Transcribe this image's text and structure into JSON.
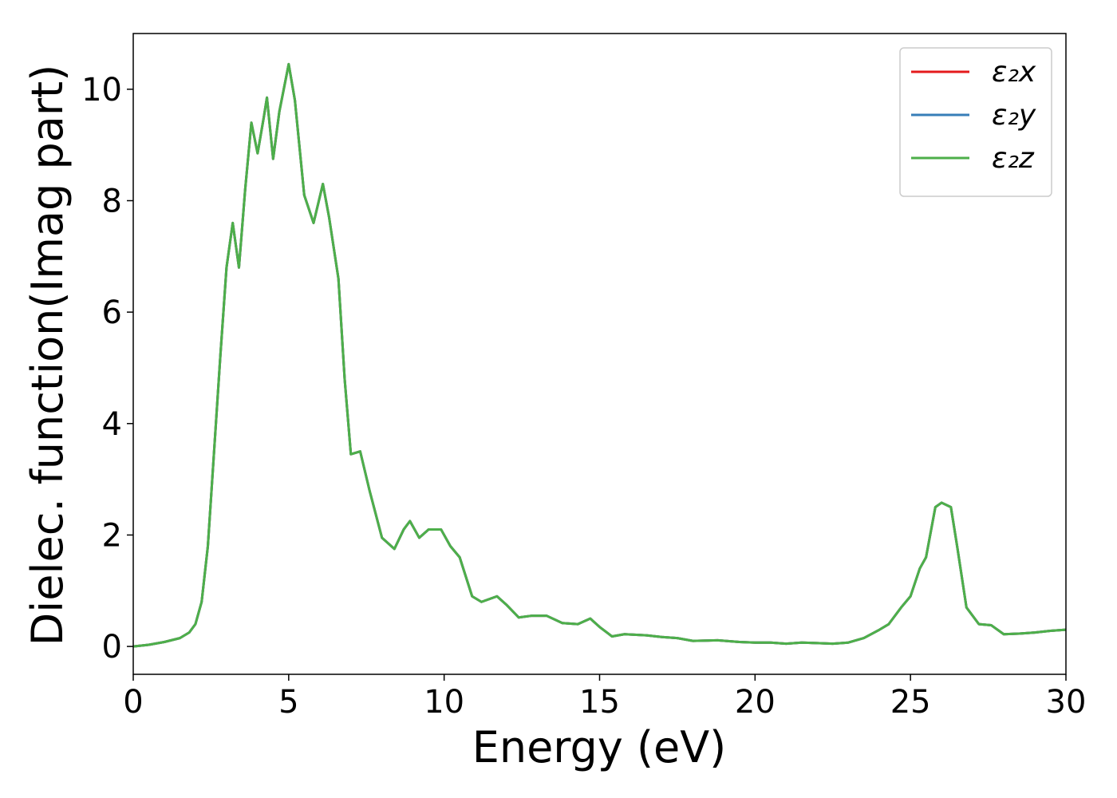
{
  "chart_data": {
    "type": "line",
    "xlabel": "Energy (eV)",
    "ylabel": "Dielec. function(Imag part)",
    "x": [
      0,
      0.5,
      1,
      1.5,
      1.8,
      2.0,
      2.2,
      2.4,
      2.6,
      2.8,
      3.0,
      3.2,
      3.4,
      3.6,
      3.8,
      4.0,
      4.2,
      4.3,
      4.5,
      4.7,
      5.0,
      5.2,
      5.5,
      5.8,
      6.1,
      6.3,
      6.6,
      6.8,
      7.0,
      7.3,
      7.6,
      8.0,
      8.4,
      8.7,
      8.9,
      9.2,
      9.5,
      9.9,
      10.2,
      10.5,
      10.9,
      11.2,
      11.7,
      12.0,
      12.4,
      12.8,
      13.3,
      13.8,
      14.3,
      14.7,
      15.0,
      15.4,
      15.8,
      16.5,
      17.0,
      17.5,
      18.0,
      18.8,
      19.5,
      20.0,
      20.5,
      21.0,
      21.5,
      22.0,
      22.5,
      23.0,
      23.5,
      24.0,
      24.3,
      24.7,
      25.0,
      25.3,
      25.5,
      25.8,
      26.0,
      26.3,
      26.5,
      26.8,
      27.2,
      27.6,
      28.0,
      28.5,
      29.0,
      29.5,
      30.0
    ],
    "series": [
      {
        "name": "ε₂x",
        "color": "#e41a1c",
        "values": [
          0,
          0.03,
          0.08,
          0.15,
          0.25,
          0.4,
          0.8,
          1.8,
          3.5,
          5.2,
          6.8,
          7.6,
          6.8,
          8.2,
          9.4,
          8.85,
          9.5,
          9.85,
          8.75,
          9.6,
          10.45,
          9.8,
          8.1,
          7.6,
          8.3,
          7.7,
          6.6,
          4.8,
          3.45,
          3.5,
          2.8,
          1.95,
          1.75,
          2.1,
          2.25,
          1.95,
          2.1,
          2.1,
          1.8,
          1.6,
          0.9,
          0.8,
          0.9,
          0.75,
          0.52,
          0.55,
          0.55,
          0.42,
          0.4,
          0.5,
          0.35,
          0.18,
          0.22,
          0.2,
          0.17,
          0.15,
          0.1,
          0.11,
          0.08,
          0.07,
          0.07,
          0.05,
          0.07,
          0.06,
          0.05,
          0.07,
          0.15,
          0.3,
          0.4,
          0.7,
          0.9,
          1.4,
          1.6,
          2.5,
          2.58,
          2.5,
          1.8,
          0.7,
          0.4,
          0.38,
          0.22,
          0.23,
          0.25,
          0.28,
          0.3
        ]
      },
      {
        "name": "ε₂y",
        "color": "#377eb8",
        "values": [
          0,
          0.03,
          0.08,
          0.15,
          0.25,
          0.4,
          0.8,
          1.8,
          3.5,
          5.2,
          6.8,
          7.6,
          6.8,
          8.2,
          9.4,
          8.85,
          9.5,
          9.85,
          8.75,
          9.6,
          10.45,
          9.8,
          8.1,
          7.6,
          8.3,
          7.7,
          6.6,
          4.8,
          3.45,
          3.5,
          2.8,
          1.95,
          1.75,
          2.1,
          2.25,
          1.95,
          2.1,
          2.1,
          1.8,
          1.6,
          0.9,
          0.8,
          0.9,
          0.75,
          0.52,
          0.55,
          0.55,
          0.42,
          0.4,
          0.5,
          0.35,
          0.18,
          0.22,
          0.2,
          0.17,
          0.15,
          0.1,
          0.11,
          0.08,
          0.07,
          0.07,
          0.05,
          0.07,
          0.06,
          0.05,
          0.07,
          0.15,
          0.3,
          0.4,
          0.7,
          0.9,
          1.4,
          1.6,
          2.5,
          2.58,
          2.5,
          1.8,
          0.7,
          0.4,
          0.38,
          0.22,
          0.23,
          0.25,
          0.28,
          0.3
        ]
      },
      {
        "name": "ε₂z",
        "color": "#4daf4a",
        "values": [
          0,
          0.03,
          0.08,
          0.15,
          0.25,
          0.4,
          0.8,
          1.8,
          3.5,
          5.2,
          6.8,
          7.6,
          6.8,
          8.2,
          9.4,
          8.85,
          9.5,
          9.85,
          8.75,
          9.6,
          10.45,
          9.8,
          8.1,
          7.6,
          8.3,
          7.7,
          6.6,
          4.8,
          3.45,
          3.5,
          2.8,
          1.95,
          1.75,
          2.1,
          2.25,
          1.95,
          2.1,
          2.1,
          1.8,
          1.6,
          0.9,
          0.8,
          0.9,
          0.75,
          0.52,
          0.55,
          0.55,
          0.42,
          0.4,
          0.5,
          0.35,
          0.18,
          0.22,
          0.2,
          0.17,
          0.15,
          0.1,
          0.11,
          0.08,
          0.07,
          0.07,
          0.05,
          0.07,
          0.06,
          0.05,
          0.07,
          0.15,
          0.3,
          0.4,
          0.7,
          0.9,
          1.4,
          1.6,
          2.5,
          2.58,
          2.5,
          1.8,
          0.7,
          0.4,
          0.38,
          0.22,
          0.23,
          0.25,
          0.28,
          0.3
        ]
      }
    ],
    "xlim": [
      0,
      30
    ],
    "xticks": [
      0,
      5,
      10,
      15,
      20,
      25,
      30
    ],
    "ylim": [
      -0.5,
      11
    ],
    "yticks": [
      0,
      2,
      4,
      6,
      8,
      10
    ],
    "grid": false,
    "legend": "upper right"
  }
}
